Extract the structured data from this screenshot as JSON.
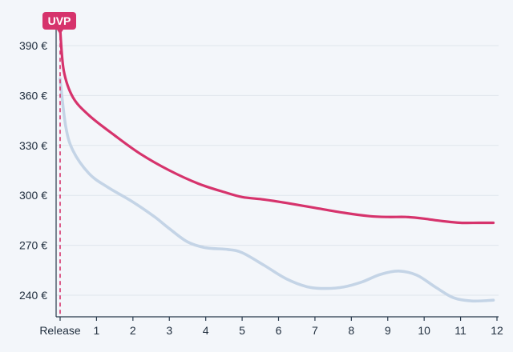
{
  "chart_data": {
    "type": "line",
    "title": "",
    "xlabel": "",
    "ylabel": "",
    "x_tick_labels": [
      "Release",
      "1",
      "2",
      "3",
      "4",
      "5",
      "6",
      "7",
      "8",
      "9",
      "10",
      "11",
      "12"
    ],
    "y_ticks": [
      240,
      270,
      300,
      330,
      360,
      390
    ],
    "y_tick_labels": [
      "240 €",
      "270 €",
      "300 €",
      "330 €",
      "360 €",
      "390 €"
    ],
    "xlim": [
      0,
      12
    ],
    "ylim": [
      227,
      403
    ],
    "grid": "horizontal",
    "annotation": {
      "label": "UVP",
      "x": 0,
      "value": 400,
      "style": "dashed vertical marker"
    },
    "series": [
      {
        "color": "#d6336c",
        "points": [
          [
            0,
            400
          ],
          [
            0.1,
            375
          ],
          [
            0.35,
            359
          ],
          [
            0.8,
            348
          ],
          [
            1.5,
            336
          ],
          [
            2.2,
            325
          ],
          [
            3,
            315
          ],
          [
            3.8,
            307
          ],
          [
            4.5,
            302
          ],
          [
            5,
            299
          ],
          [
            5.6,
            297.5
          ],
          [
            6.2,
            295.5
          ],
          [
            7,
            292.5
          ],
          [
            7.8,
            289.5
          ],
          [
            8.5,
            287.5
          ],
          [
            9,
            287
          ],
          [
            9.5,
            287
          ],
          [
            10,
            286
          ],
          [
            10.5,
            284.5
          ],
          [
            11,
            283.5
          ],
          [
            11.5,
            283.5
          ],
          [
            11.9,
            283.5
          ]
        ]
      },
      {
        "color": "#c4d4e6",
        "points": [
          [
            0,
            370
          ],
          [
            0.15,
            342
          ],
          [
            0.35,
            327
          ],
          [
            0.8,
            313
          ],
          [
            1.3,
            305
          ],
          [
            2,
            296
          ],
          [
            2.6,
            287
          ],
          [
            3,
            280
          ],
          [
            3.5,
            272
          ],
          [
            4,
            268.5
          ],
          [
            4.6,
            267.5
          ],
          [
            5,
            265.5
          ],
          [
            5.6,
            258
          ],
          [
            6.2,
            250
          ],
          [
            6.8,
            245
          ],
          [
            7.3,
            244
          ],
          [
            7.8,
            245
          ],
          [
            8.3,
            248
          ],
          [
            8.8,
            252.5
          ],
          [
            9.3,
            254.5
          ],
          [
            9.8,
            252
          ],
          [
            10.3,
            245
          ],
          [
            10.8,
            238.5
          ],
          [
            11.3,
            236.5
          ],
          [
            11.9,
            237
          ]
        ]
      }
    ]
  }
}
